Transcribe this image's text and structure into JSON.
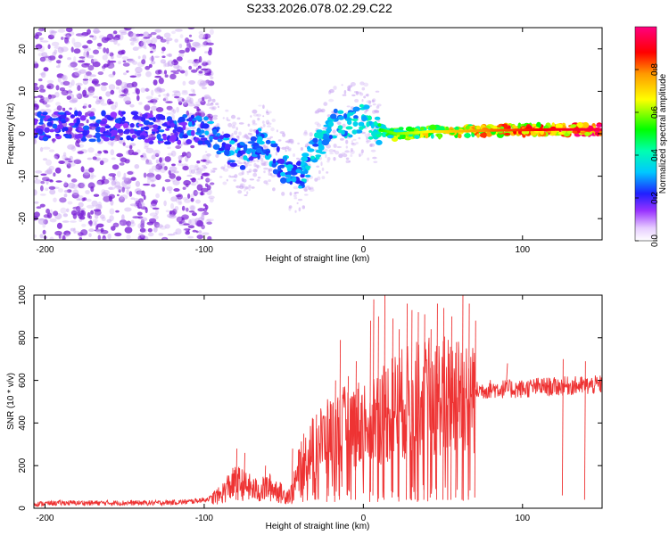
{
  "figure_title": "S233.2026.078.02.29.C22",
  "colors": {
    "snr_line": "#ee3333",
    "spectrogram_scatter": "#7b22d6",
    "spectrogram_ridge_low": "#3010ff",
    "spectrogram_ridge_high": "#ff1010",
    "axes": "#000000"
  },
  "chart_data": [
    {
      "type": "heatmap",
      "name": "spectrogram",
      "title": "",
      "xlabel": "Height of straight line (km)",
      "ylabel": "Frequency (Hz)",
      "xlim": [
        -207,
        150
      ],
      "ylim": [
        -25,
        25
      ],
      "xticks": [
        -200,
        -100,
        0,
        100
      ],
      "yticks": [
        20,
        10,
        0,
        -10,
        -20
      ],
      "colorbar": {
        "label": "Normalized spectral amplitude",
        "range": [
          0,
          1
        ],
        "ticks": [
          0.0,
          0.2,
          0.4,
          0.6,
          0.8
        ],
        "colormap": "rainbow (white-purple-blue-cyan-green-yellow-red-magenta)"
      },
      "ridge": {
        "x": [
          -207,
          -190,
          -170,
          -150,
          -130,
          -110,
          -100,
          -90,
          -80,
          -75,
          -70,
          -65,
          -60,
          -55,
          -50,
          -45,
          -40,
          -35,
          -30,
          -25,
          -20,
          -15,
          -10,
          -5,
          0,
          5,
          10,
          15,
          20,
          30,
          40,
          50,
          60,
          80,
          100,
          120,
          150
        ],
        "frequency_hz": [
          2,
          2,
          1.5,
          2,
          1,
          1,
          1,
          -2,
          -5,
          -6,
          -4,
          -2,
          -3,
          -6,
          -8,
          -9,
          -10,
          -7,
          -3,
          -2,
          2,
          3,
          2,
          3,
          4,
          2,
          1,
          0.5,
          0,
          0.2,
          0.5,
          0.5,
          0.6,
          0.8,
          0.9,
          1.0,
          1.0
        ],
        "amplitude": [
          0.25,
          0.25,
          0.25,
          0.25,
          0.25,
          0.28,
          0.3,
          0.32,
          0.33,
          0.33,
          0.33,
          0.33,
          0.34,
          0.34,
          0.34,
          0.35,
          0.36,
          0.37,
          0.38,
          0.4,
          0.42,
          0.44,
          0.45,
          0.46,
          0.48,
          0.5,
          0.55,
          0.6,
          0.62,
          0.66,
          0.7,
          0.74,
          0.78,
          0.85,
          0.9,
          0.95,
          1.0
        ]
      }
    },
    {
      "type": "line",
      "name": "snr",
      "title": "",
      "xlabel": "Height of straight line (km)",
      "ylabel": "SNR (10 * v/v)",
      "xlim": [
        -207,
        150
      ],
      "ylim": [
        0,
        1000
      ],
      "xticks": [
        -200,
        -100,
        0,
        100
      ],
      "yticks": [
        0,
        200,
        400,
        600,
        800,
        1000
      ],
      "series": [
        {
          "name": "SNR",
          "x": [
            -207,
            -190,
            -170,
            -150,
            -130,
            -110,
            -100,
            -90,
            -85,
            -80,
            -75,
            -70,
            -65,
            -60,
            -55,
            -50,
            -45,
            -40,
            -35,
            -30,
            -25,
            -20,
            -15,
            -10,
            -5,
            0,
            5,
            10,
            15,
            20,
            30,
            40,
            50,
            60,
            70,
            80,
            90,
            100,
            110,
            120,
            130,
            140,
            150
          ],
          "y": [
            20,
            25,
            25,
            25,
            25,
            30,
            40,
            60,
            100,
            120,
            110,
            90,
            80,
            100,
            90,
            60,
            70,
            180,
            250,
            300,
            320,
            340,
            360,
            380,
            390,
            400,
            420,
            440,
            460,
            480,
            500,
            520,
            530,
            540,
            550,
            560,
            560,
            560,
            570,
            570,
            575,
            575,
            580
          ]
        }
      ],
      "spikes": {
        "x": [
          -80,
          -75,
          -62,
          -45,
          -38,
          -30,
          -23,
          -18,
          -15,
          -10,
          -5,
          4,
          6,
          9,
          13,
          18,
          22,
          27,
          30,
          34,
          38,
          42,
          46,
          50,
          55,
          58,
          62,
          66,
          70,
          90,
          125,
          139
        ],
        "high": [
          280,
          260,
          200,
          280,
          350,
          440,
          480,
          600,
          790,
          620,
          690,
          880,
          980,
          900,
          1000,
          890,
          840,
          960,
          930,
          920,
          910,
          840,
          960,
          940,
          900,
          780,
          1000,
          960,
          880,
          680,
          700,
          690
        ],
        "low": [
          40,
          60,
          50,
          20,
          30,
          40,
          30,
          30,
          40,
          60,
          40,
          30,
          60,
          30,
          40,
          50,
          60,
          40,
          40,
          30,
          40,
          50,
          40,
          40,
          40,
          50,
          40,
          40,
          50,
          600,
          60,
          40
        ]
      }
    }
  ]
}
